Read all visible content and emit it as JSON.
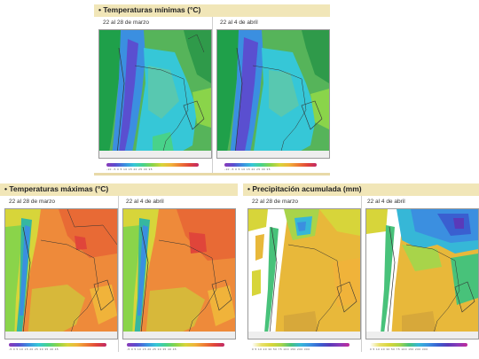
{
  "panels": {
    "min": {
      "title": "Temperaturas mínimas (°C)",
      "col1": "22 al 28 de marzo",
      "col2": "22 al 4 de abril",
      "colorscale": [
        "#8a3ab9",
        "#5a4fd0",
        "#3b8fe0",
        "#36c7d7",
        "#48d28a",
        "#8ad44a",
        "#d7d53a",
        "#f0b33a",
        "#ee7a35",
        "#e0453a",
        "#c12a66"
      ],
      "ticks": "-10 -5 0 5 10 15 20 25 30 35"
    },
    "max": {
      "title": "Temperaturas máximas (°C)",
      "col1": "22 al 28 de marzo",
      "col2": "22 al 4 de abril",
      "colorscale": [
        "#8a3ab9",
        "#5a4fd0",
        "#3b8fe0",
        "#36c7d7",
        "#48d28a",
        "#8ad44a",
        "#d7d53a",
        "#f0b33a",
        "#ee7a35",
        "#e0453a",
        "#c12a66"
      ],
      "ticks": "-5 0 5 10 15 20 25 30 35 40 45"
    },
    "precip": {
      "title": "Precipitación acumulada (mm)",
      "col1": "22 al 28 de marzo",
      "col2": "22 al 4 de abril",
      "colorscale": [
        "#ffffff",
        "#e8e06a",
        "#d7d53a",
        "#a8d44a",
        "#48c27a",
        "#36b7d7",
        "#3b8fe0",
        "#3a5fd0",
        "#5a3ab9",
        "#8a3ab9",
        "#c12a9a"
      ],
      "ticks": "0 5 10 20 30 50 75 100 150 200 300"
    }
  }
}
